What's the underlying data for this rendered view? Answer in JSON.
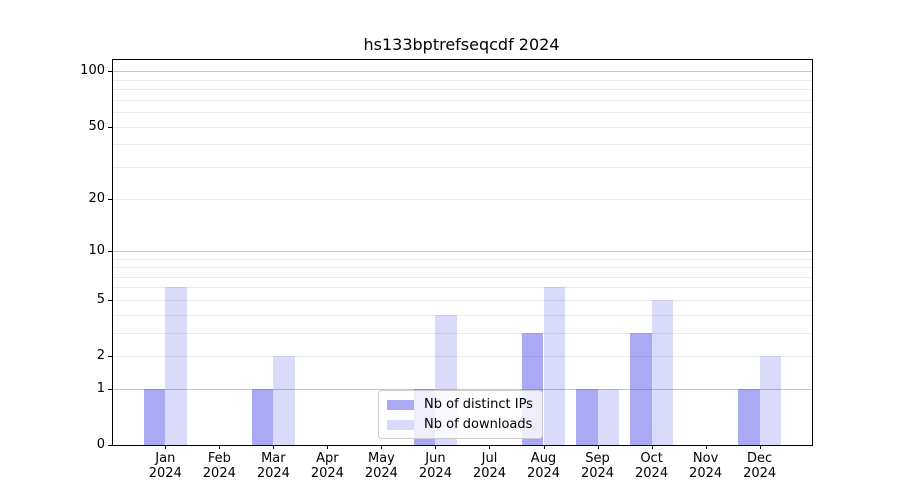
{
  "chart_data": {
    "type": "bar",
    "title": "hs133bptrefseqcdf 2024",
    "categories": [
      "Jan 2024",
      "Feb 2024",
      "Mar 2024",
      "Apr 2024",
      "May 2024",
      "Jun 2024",
      "Jul 2024",
      "Aug 2024",
      "Sep 2024",
      "Oct 2024",
      "Nov 2024",
      "Dec 2024"
    ],
    "series": [
      {
        "name": "Nb of distinct IPs",
        "values": [
          1,
          0,
          1,
          0,
          0,
          1,
          0,
          3,
          1,
          3,
          0,
          1
        ],
        "color": "rgba(60,60,230,0.44)"
      },
      {
        "name": "Nb of downloads",
        "values": [
          6,
          0,
          2,
          0,
          0,
          4,
          0,
          6,
          1,
          5,
          0,
          2
        ],
        "color": "rgba(60,60,230,0.19)"
      }
    ],
    "xlabel": "",
    "ylabel": "",
    "yscale": "log1p",
    "ylim": [
      0,
      114
    ],
    "yticks": [
      0,
      1,
      2,
      5,
      10,
      20,
      50,
      100
    ],
    "major_gridlines": [
      1,
      10,
      100
    ],
    "minor_gridlines": [
      2,
      3,
      4,
      5,
      6,
      7,
      8,
      9,
      20,
      30,
      40,
      50,
      60,
      70,
      80,
      90
    ],
    "grid": true,
    "legend_position": "lower center"
  },
  "colors": {
    "bar_distinct_ips": "rgba(60,60,230,0.44)",
    "bar_downloads": "rgba(60,60,230,0.19)",
    "major_gridline": "#c6c6c6",
    "minor_gridline": "#eaeaea",
    "axis": "#000000",
    "legend_border": "#cccccc"
  }
}
